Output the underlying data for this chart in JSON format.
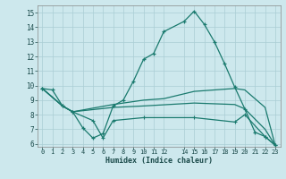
{
  "xlabel": "Humidex (Indice chaleur)",
  "background_color": "#cde8ed",
  "grid_color": "#aacdd4",
  "line_color": "#1a7a6e",
  "xlim": [
    -0.5,
    23.5
  ],
  "ylim": [
    5.8,
    15.5
  ],
  "yticks": [
    6,
    7,
    8,
    9,
    10,
    11,
    12,
    13,
    14,
    15
  ],
  "xticks": [
    0,
    1,
    2,
    3,
    4,
    5,
    6,
    7,
    8,
    9,
    10,
    11,
    12,
    14,
    15,
    16,
    17,
    18,
    19,
    20,
    21,
    22,
    23
  ],
  "line1_x": [
    0,
    1,
    2,
    3,
    4,
    5,
    6,
    7,
    8,
    9,
    10,
    11,
    12,
    14,
    15,
    16,
    17,
    18,
    19,
    20,
    21,
    22,
    23
  ],
  "line1_y": [
    9.8,
    9.7,
    8.6,
    8.2,
    7.1,
    6.4,
    6.7,
    8.6,
    9.0,
    10.3,
    11.8,
    12.2,
    13.7,
    14.4,
    15.1,
    14.2,
    13.0,
    11.5,
    9.9,
    8.4,
    6.8,
    6.5,
    5.9
  ],
  "line2_x": [
    0,
    2,
    3,
    7,
    10,
    12,
    15,
    19,
    20,
    22,
    23
  ],
  "line2_y": [
    9.8,
    8.6,
    8.2,
    8.7,
    9.0,
    9.1,
    9.6,
    9.8,
    9.7,
    8.5,
    5.9
  ],
  "line3_x": [
    0,
    2,
    3,
    7,
    10,
    15,
    19,
    20,
    22,
    23
  ],
  "line3_y": [
    9.8,
    8.6,
    8.2,
    8.5,
    8.6,
    8.8,
    8.7,
    8.4,
    7.0,
    5.9
  ],
  "line4_x": [
    0,
    2,
    3,
    5,
    6,
    7,
    10,
    15,
    19,
    20,
    22,
    23
  ],
  "line4_y": [
    9.8,
    8.6,
    8.2,
    7.6,
    6.4,
    7.6,
    7.8,
    7.8,
    7.5,
    8.0,
    6.5,
    5.9
  ]
}
